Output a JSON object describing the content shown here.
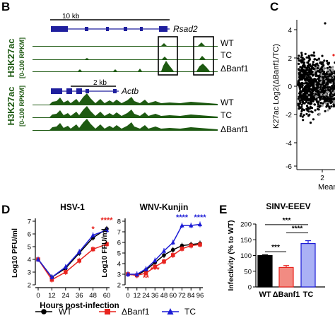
{
  "panels": {
    "B": {
      "letter": "B",
      "top_block": {
        "ylabel_main": "H3K27ac",
        "ylabel_sub": "[0-100 RPKM]",
        "scale_label": "10 kb",
        "gene": "Rsad2",
        "tracks": [
          "WT",
          "TC",
          "ΔBanf1"
        ]
      },
      "bottom_block": {
        "ylabel_main": "H3K27ac",
        "ylabel_sub": "[0-100 RPKM]",
        "scale_label": "2 kb",
        "gene": "Actb",
        "tracks": [
          "WT",
          "TC",
          "ΔBanf1"
        ]
      },
      "colors": {
        "track": "#1e5a12",
        "gene": "#1f1f9e"
      }
    },
    "C": {
      "letter": "C",
      "ylabel": "K27ac Log2(ΔBanf1/TC)",
      "xlabel": "Mean",
      "yticks": [
        "4",
        "2",
        "0",
        "-2",
        "-4",
        "-6"
      ],
      "xticks": [
        "2"
      ]
    },
    "D": {
      "letter": "D",
      "legend": {
        "items": [
          {
            "name": "WT",
            "color": "#000000",
            "marker": "circle"
          },
          {
            "name": "ΔBanf1",
            "color": "#e8241f",
            "marker": "square"
          },
          {
            "name": "TC",
            "color": "#1c1cd6",
            "marker": "triangle"
          }
        ]
      }
    },
    "E": {
      "letter": "E"
    }
  },
  "chart_data": [
    {
      "type": "line",
      "title": "HSV-1",
      "xlabel": "Hours post-infection",
      "ylabel": "Log10 PFU/ml",
      "x": [
        0,
        12,
        24,
        36,
        48,
        60
      ],
      "xticks": [
        "0",
        "12",
        "24",
        "36",
        "48",
        "60"
      ],
      "yticks": [
        "2",
        "3",
        "4",
        "5",
        "6",
        "7"
      ],
      "ylim": [
        2,
        7
      ],
      "series": [
        {
          "name": "WT",
          "color": "#000000",
          "values": [
            4.0,
            2.6,
            3.3,
            4.5,
            5.7,
            6.4
          ]
        },
        {
          "name": "ΔBanf1",
          "color": "#e8241f",
          "values": [
            4.0,
            2.4,
            3.0,
            3.9,
            4.8,
            5.2
          ]
        },
        {
          "name": "TC",
          "color": "#1c1cd6",
          "values": [
            4.0,
            2.6,
            3.4,
            4.6,
            5.9,
            6.3
          ]
        }
      ],
      "annotations": [
        {
          "x": 48,
          "y": 6.2,
          "text": "*",
          "color": "#e8241f"
        },
        {
          "x": 60,
          "y": 6.9,
          "text": "****",
          "color": "#e8241f"
        }
      ]
    },
    {
      "type": "line",
      "title": "WNV-Kunjin",
      "xlabel": "",
      "ylabel": "Log10 FFU/ml",
      "x": [
        0,
        12,
        24,
        36,
        48,
        60,
        72,
        84,
        96
      ],
      "xticks": [
        "0",
        "12",
        "24",
        "36",
        "48",
        "60",
        "72",
        "84",
        "96"
      ],
      "yticks": [
        "2",
        "3",
        "4",
        "5",
        "6",
        "7",
        "8"
      ],
      "ylim": [
        2,
        8
      ],
      "series": [
        {
          "name": "WT",
          "color": "#000000",
          "values": [
            3.0,
            2.9,
            3.4,
            4.1,
            4.8,
            5.3,
            5.7,
            5.8,
            5.9
          ]
        },
        {
          "name": "ΔBanf1",
          "color": "#e8241f",
          "values": [
            3.0,
            2.9,
            3.1,
            3.7,
            4.2,
            4.8,
            5.4,
            5.7,
            5.8
          ]
        },
        {
          "name": "TC",
          "color": "#1c1cd6",
          "values": [
            3.0,
            3.0,
            3.5,
            4.3,
            5.2,
            6.0,
            7.6,
            7.6,
            7.7
          ]
        }
      ],
      "annotations": [
        {
          "x": 24,
          "y": 2.45,
          "text": "**",
          "color": "#e8241f"
        },
        {
          "x": 36,
          "y": 3.2,
          "text": "***",
          "color": "#e8241f"
        },
        {
          "x": 72,
          "y": 8.15,
          "text": "****",
          "color": "#1c1cd6"
        },
        {
          "x": 96,
          "y": 8.15,
          "text": "****",
          "color": "#1c1cd6"
        }
      ]
    },
    {
      "type": "bar",
      "title": "SINV-EEEV",
      "ylabel": "Infectivity (% to WT)",
      "categories": [
        "WT",
        "ΔBanf1",
        "TC"
      ],
      "values": [
        100,
        62,
        138
      ],
      "errors": [
        2,
        6,
        9
      ],
      "colors": [
        "#000000",
        "#e8241f",
        "#1c1cd6"
      ],
      "fills": [
        "#000000",
        "#f28b82",
        "#aab1f5"
      ],
      "yticks": [
        "0",
        "50",
        "100",
        "150",
        "200"
      ],
      "ylim": [
        0,
        200
      ],
      "significance": [
        {
          "from": 0,
          "to": 1,
          "text": "***"
        },
        {
          "from": 1,
          "to": 2,
          "text": "****"
        },
        {
          "from": 0,
          "to": 2,
          "text": "***"
        }
      ]
    }
  ]
}
